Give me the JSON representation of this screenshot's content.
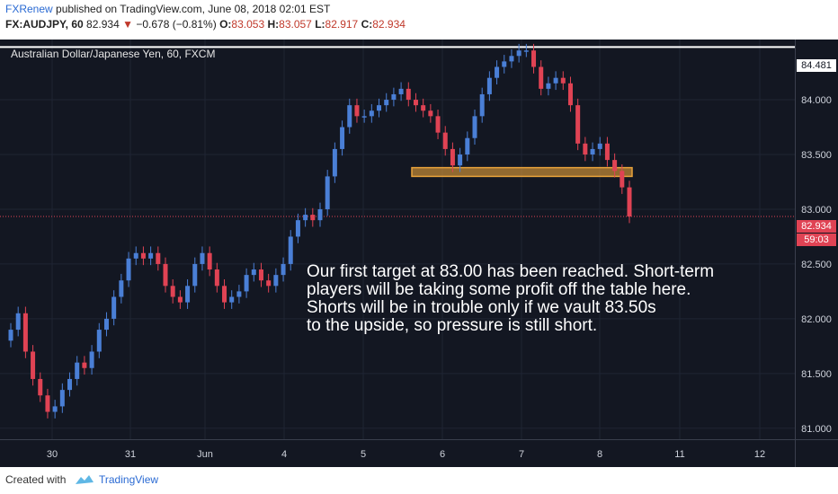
{
  "header": {
    "author": "FXRenew",
    "published_text": "published on TradingView.com, June 08, 2018 02:01 EST",
    "symbol": "FX:AUDJPY, 60",
    "last": "82.934",
    "change": "−0.678 (−0.81%)",
    "o_label": "O:",
    "o_value": "83.053",
    "h_label": "H:",
    "h_value": "83.057",
    "l_label": "L:",
    "l_value": "82.917",
    "c_label": "C:",
    "c_value": "82.934"
  },
  "chart_label": "Australian Dollar/Japanese Yen, 60, FXCM",
  "annotation_lines": [
    "Our first target at 83.00 has been reached. Short-term",
    "players will be taking some profit off the table here.",
    "Shorts will be in trouble only if we vault 83.50s",
    "to the upside, so pressure is still short."
  ],
  "footer": {
    "created_with": "Created with",
    "brand": "TradingView"
  },
  "colors": {
    "background": "#131722",
    "up": "#4a7fd6",
    "down": "#e04354",
    "zone": "#e8a23a",
    "resistance": "#ffffff"
  },
  "chart_data": {
    "type": "candlestick",
    "title": "Australian Dollar/Japanese Yen, 60, FXCM",
    "y_ticks": [
      "84.000",
      "83.500",
      "83.000",
      "82.500",
      "82.000",
      "81.500",
      "81.000"
    ],
    "y_tick_values": [
      84.0,
      83.5,
      83.0,
      82.5,
      82.0,
      81.5,
      81.0
    ],
    "ylim": [
      80.9,
      84.55
    ],
    "x_ticks": [
      "30",
      "31",
      "Jun",
      "4",
      "5",
      "6",
      "7",
      "8",
      "11",
      "12"
    ],
    "resistance_level": 84.481,
    "resistance_label": "84.481",
    "last_price": 82.934,
    "last_price_label": "82.934",
    "timer_label": "59:03",
    "zone": {
      "low": 83.3,
      "high": 83.38
    },
    "series": [
      {
        "name": "",
        "values": [
          81.9,
          82.05,
          81.7,
          81.45,
          81.3,
          81.15,
          81.2,
          81.35,
          81.45,
          81.6,
          81.55,
          81.7,
          81.9,
          82.0,
          82.2,
          82.35,
          82.55,
          82.6,
          82.55,
          82.6,
          82.5,
          82.3,
          82.2,
          82.15,
          82.3,
          82.5,
          82.6,
          82.45,
          82.3,
          82.15,
          82.2,
          82.25,
          82.4,
          82.45,
          82.35,
          82.3,
          82.4,
          82.5,
          82.75,
          82.9,
          82.95,
          82.9,
          83.0,
          83.3,
          83.55,
          83.75,
          83.95,
          83.85,
          83.85,
          83.9,
          83.95,
          84.0,
          84.05,
          84.1,
          84.0,
          83.95,
          83.9,
          83.85,
          83.7,
          83.55,
          83.4,
          83.5,
          83.65,
          83.85,
          84.05,
          84.2,
          84.3,
          84.35,
          84.4,
          84.45,
          84.45,
          84.3,
          84.1,
          84.15,
          84.2,
          84.15,
          83.95,
          83.6,
          83.5,
          83.55,
          83.6,
          83.45,
          83.35,
          83.2,
          82.934
        ]
      }
    ]
  }
}
